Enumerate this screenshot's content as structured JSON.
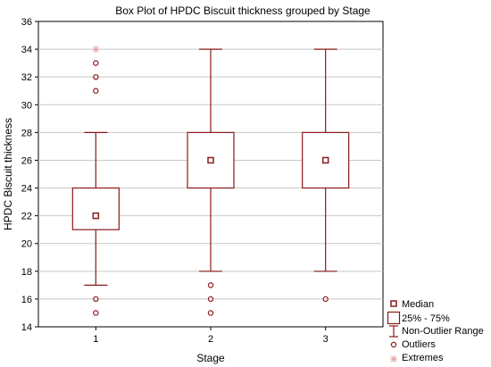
{
  "chart_data": {
    "type": "box",
    "title": "Box Plot of HPDC Biscuit thickness grouped by  Stage",
    "xlabel": "Stage",
    "ylabel": "HPDC Biscuit thickness",
    "ylim": [
      14,
      36
    ],
    "yticks": [
      14,
      16,
      18,
      20,
      22,
      24,
      26,
      28,
      30,
      32,
      34,
      36
    ],
    "grid": true,
    "legend_position": "bottom-right",
    "colors": {
      "box": "#8b1a1a",
      "extreme": "#e8a0a0",
      "grid": "#c8c8c8"
    },
    "categories": [
      "1",
      "2",
      "3"
    ],
    "boxes": [
      {
        "category": "1",
        "median": 22,
        "q1": 21,
        "q3": 24,
        "whisker_low": 17,
        "whisker_high": 28,
        "outliers": [
          15,
          16,
          31,
          32,
          33
        ],
        "extremes": [
          34
        ]
      },
      {
        "category": "2",
        "median": 26,
        "q1": 24,
        "q3": 28,
        "whisker_low": 18,
        "whisker_high": 34,
        "outliers": [
          15,
          16,
          17
        ],
        "extremes": []
      },
      {
        "category": "3",
        "median": 26,
        "q1": 24,
        "q3": 28,
        "whisker_low": 18,
        "whisker_high": 34,
        "outliers": [
          16
        ],
        "extremes": []
      }
    ],
    "legend": {
      "median": "Median",
      "box": "25% - 75%",
      "range": "Non-Outlier Range",
      "outliers": "Outliers",
      "extremes": "Extremes"
    }
  }
}
